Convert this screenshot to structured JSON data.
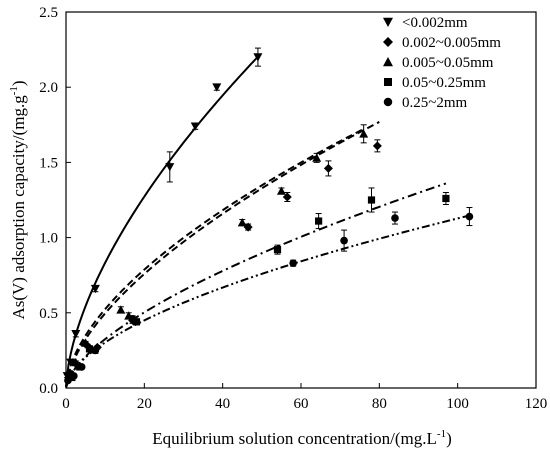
{
  "chart_data": {
    "type": "scatter",
    "title": "",
    "xlabel": "Equilibrium solution concentration/(mg.L",
    "xlabel_sup": "-1",
    "xlabel_end": ")",
    "ylabel": "As(V) adsorption capacity/(mg.g",
    "ylabel_sup": "-1",
    "ylabel_end": ")",
    "xlim": [
      0,
      120
    ],
    "ylim": [
      0,
      2.5
    ],
    "xticks": [
      0,
      20,
      40,
      60,
      80,
      100,
      120
    ],
    "yticks": [
      0.0,
      0.5,
      1.0,
      1.5,
      2.0,
      2.5
    ],
    "ytick_labels": [
      "0.0",
      "0.5",
      "1.0",
      "1.5",
      "2.0",
      "2.5"
    ],
    "grid": false,
    "legend_position": "top-right",
    "series": [
      {
        "name": "<0.002mm",
        "marker": "triangle-down",
        "line": "solid",
        "x": [
          0.3,
          1.2,
          2.5,
          7.5,
          26.5,
          33.0,
          38.5,
          49.0
        ],
        "y": [
          0.08,
          0.17,
          0.36,
          0.66,
          1.47,
          1.74,
          2.0,
          2.2
        ],
        "err": [
          0.01,
          0.01,
          0.02,
          0.02,
          0.1,
          0.02,
          0.02,
          0.06
        ],
        "fit_k": 0.2035,
        "fit_n": 0.612,
        "fit_xmax": 49
      },
      {
        "name": "0.002~0.005mm",
        "marker": "diamond",
        "line": "dashed",
        "x": [
          1.0,
          3.0,
          5.5,
          8.0,
          17.0,
          46.5,
          56.5,
          67.0,
          79.5
        ],
        "y": [
          0.1,
          0.15,
          0.28,
          0.27,
          0.45,
          1.07,
          1.27,
          1.46,
          1.61
        ],
        "err": [
          0.01,
          0.01,
          0.01,
          0.01,
          0.02,
          0.02,
          0.03,
          0.05,
          0.04
        ],
        "fit_k": 0.1216,
        "fit_n": 0.611,
        "fit_xmax": 80
      },
      {
        "name": "0.005~0.05mm",
        "marker": "triangle-up",
        "line": "dashed",
        "x": [
          0.8,
          2.5,
          5.0,
          14.0,
          16.0,
          45.0,
          55.0,
          64.0,
          76.0
        ],
        "y": [
          0.09,
          0.17,
          0.3,
          0.52,
          0.48,
          1.1,
          1.31,
          1.53,
          1.69
        ],
        "err": [
          0.01,
          0.01,
          0.01,
          0.02,
          0.02,
          0.02,
          0.02,
          0.03,
          0.06
        ],
        "fit_k": 0.1361,
        "fit_n": 0.586,
        "fit_xmax": 76
      },
      {
        "name": "0.05~0.25mm",
        "marker": "square",
        "line": "dash-dot",
        "x": [
          1.5,
          3.5,
          6.0,
          18.0,
          54.0,
          64.5,
          78.0,
          97.0
        ],
        "y": [
          0.07,
          0.14,
          0.26,
          0.44,
          0.92,
          1.11,
          1.25,
          1.26
        ],
        "err": [
          0.01,
          0.01,
          0.01,
          0.02,
          0.03,
          0.05,
          0.08,
          0.04
        ],
        "fit_k": 0.0762,
        "fit_n": 0.63,
        "fit_xmax": 97
      },
      {
        "name": "0.25~2mm",
        "marker": "circle",
        "line": "dash-dot-dot",
        "x": [
          0.5,
          2.0,
          4.0,
          7.5,
          17.0,
          58.0,
          71.0,
          84.0,
          103.0
        ],
        "y": [
          0.05,
          0.08,
          0.14,
          0.25,
          0.46,
          0.83,
          0.98,
          1.13,
          1.14
        ],
        "err": [
          0.01,
          0.01,
          0.01,
          0.02,
          0.02,
          0.02,
          0.07,
          0.04,
          0.06
        ],
        "fit_k": 0.0813,
        "fit_n": 0.571,
        "fit_xmax": 103
      }
    ]
  }
}
